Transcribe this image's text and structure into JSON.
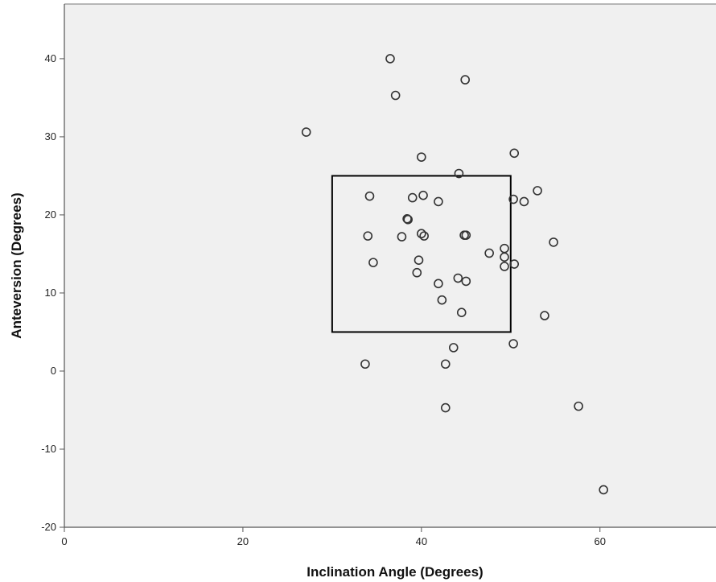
{
  "chart_data": {
    "type": "scatter",
    "title": "",
    "xlabel": "Inclination Angle (Degrees)",
    "ylabel": "Anteversion (Degrees)",
    "xlim": [
      0,
      73
    ],
    "ylim": [
      -20,
      47
    ],
    "x_ticks": [
      0,
      20,
      40,
      60
    ],
    "y_ticks": [
      -20,
      -10,
      0,
      10,
      20,
      30,
      40
    ],
    "grid": false,
    "legend": "none",
    "colors": {
      "plot_background": "#f0f0f0",
      "marker_stroke": "#333333",
      "axis": "#555555",
      "box": "#000000"
    },
    "target_zone": {
      "x": [
        30,
        50
      ],
      "y": [
        5,
        25
      ]
    },
    "points": [
      {
        "x": 36.5,
        "y": 40.0
      },
      {
        "x": 44.9,
        "y": 37.3
      },
      {
        "x": 37.1,
        "y": 35.3
      },
      {
        "x": 27.1,
        "y": 30.6
      },
      {
        "x": 50.4,
        "y": 27.9
      },
      {
        "x": 40.0,
        "y": 27.4
      },
      {
        "x": 44.2,
        "y": 25.3
      },
      {
        "x": 53.0,
        "y": 23.1
      },
      {
        "x": 34.2,
        "y": 22.4
      },
      {
        "x": 40.2,
        "y": 22.5
      },
      {
        "x": 39.0,
        "y": 22.2
      },
      {
        "x": 41.9,
        "y": 21.7
      },
      {
        "x": 50.3,
        "y": 22.0
      },
      {
        "x": 51.5,
        "y": 21.7
      },
      {
        "x": 38.5,
        "y": 19.4
      },
      {
        "x": 38.4,
        "y": 19.5
      },
      {
        "x": 34.0,
        "y": 17.3
      },
      {
        "x": 37.8,
        "y": 17.2
      },
      {
        "x": 40.0,
        "y": 17.6
      },
      {
        "x": 40.3,
        "y": 17.3
      },
      {
        "x": 45.0,
        "y": 17.4
      },
      {
        "x": 44.8,
        "y": 17.4
      },
      {
        "x": 54.8,
        "y": 16.5
      },
      {
        "x": 49.3,
        "y": 15.7
      },
      {
        "x": 47.6,
        "y": 15.1
      },
      {
        "x": 49.3,
        "y": 14.6
      },
      {
        "x": 34.6,
        "y": 13.9
      },
      {
        "x": 39.7,
        "y": 14.2
      },
      {
        "x": 49.3,
        "y": 13.4
      },
      {
        "x": 50.4,
        "y": 13.7
      },
      {
        "x": 39.5,
        "y": 12.6
      },
      {
        "x": 44.1,
        "y": 11.9
      },
      {
        "x": 45.0,
        "y": 11.5
      },
      {
        "x": 41.9,
        "y": 11.2
      },
      {
        "x": 42.3,
        "y": 9.1
      },
      {
        "x": 44.5,
        "y": 7.5
      },
      {
        "x": 53.8,
        "y": 7.1
      },
      {
        "x": 50.3,
        "y": 3.5
      },
      {
        "x": 43.6,
        "y": 3.0
      },
      {
        "x": 33.7,
        "y": 0.9
      },
      {
        "x": 42.7,
        "y": 0.9
      },
      {
        "x": 42.7,
        "y": -4.7
      },
      {
        "x": 57.6,
        "y": -4.5
      },
      {
        "x": 60.4,
        "y": -15.2
      }
    ]
  }
}
